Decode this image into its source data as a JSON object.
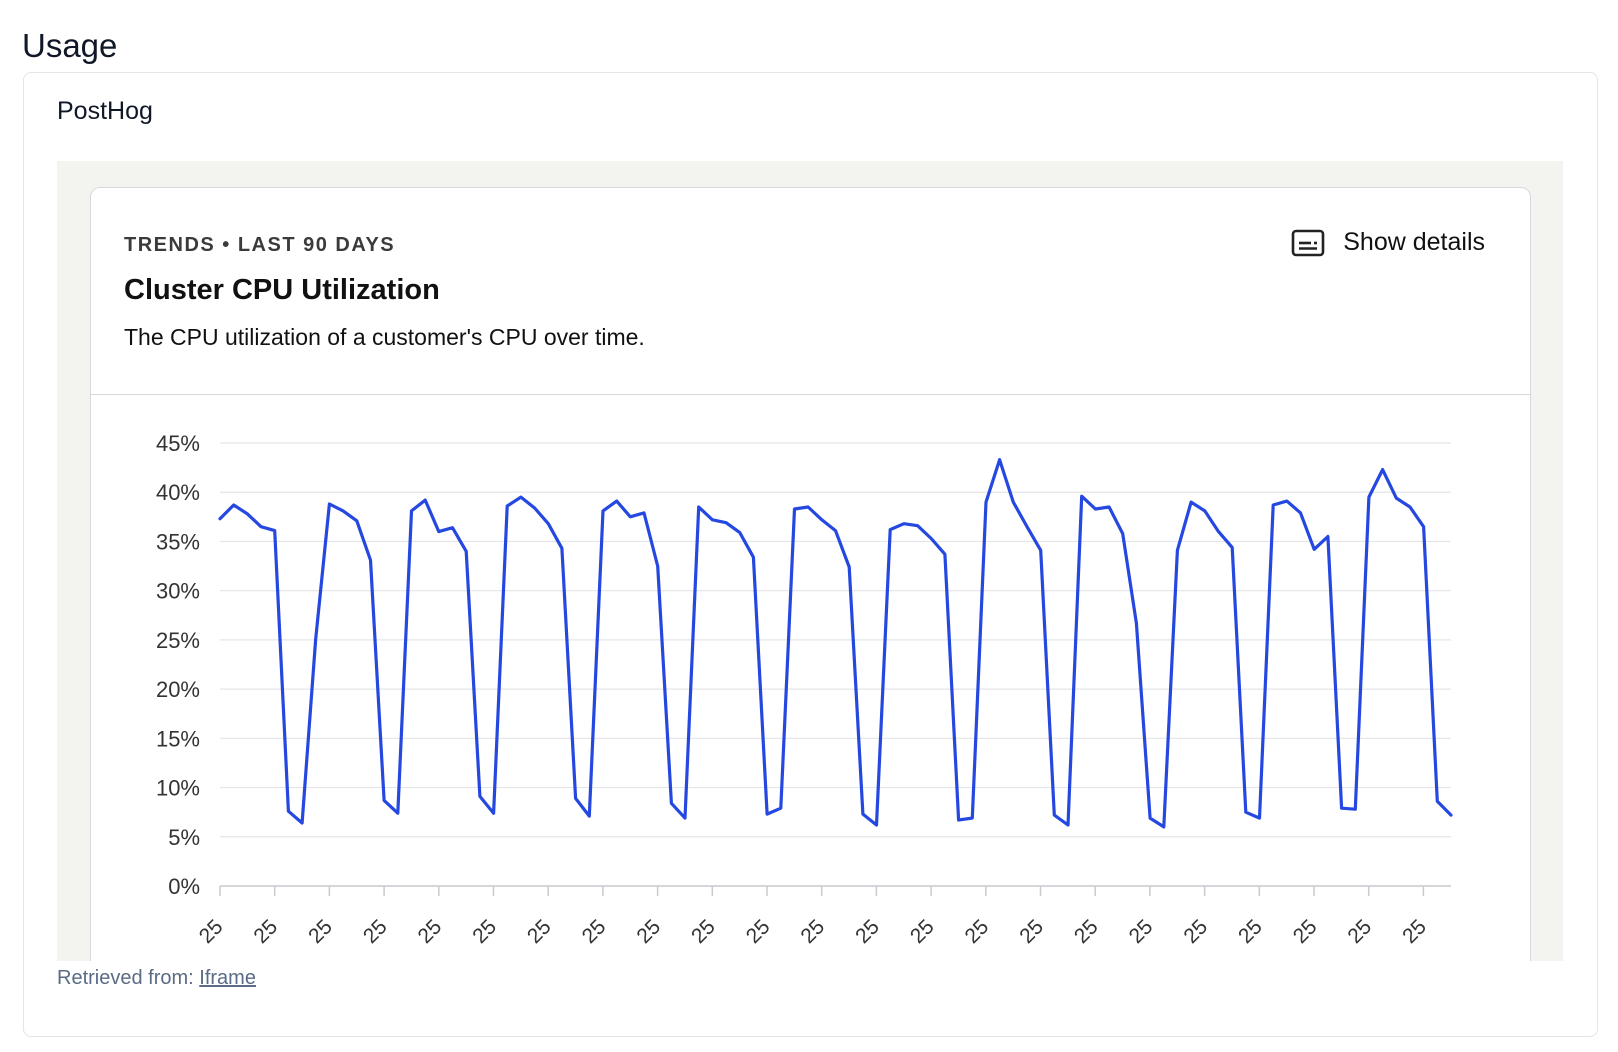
{
  "page": {
    "heading": "Usage"
  },
  "card": {
    "title": "PostHog",
    "footer": {
      "prefix": "Retrieved from: ",
      "link_label": "Iframe"
    }
  },
  "insight": {
    "meta": "TRENDS • LAST 90 DAYS",
    "title": "Cluster CPU Utilization",
    "description": "The CPU utilization of a customer's CPU over time.",
    "show_details_label": "Show details",
    "show_details_icon": "subtitles-icon"
  },
  "colors": {
    "series": "#2548e0",
    "grid": "#e4e5e8",
    "frame_bg": "#f3f3ef"
  },
  "chart_data": {
    "type": "line",
    "title": "Cluster CPU Utilization",
    "ylim": [
      0,
      45
    ],
    "y_ticks": [
      "0%",
      "5%",
      "10%",
      "15%",
      "20%",
      "25%",
      "30%",
      "35%",
      "40%",
      "45%"
    ],
    "y_tick_values": [
      0,
      5,
      10,
      15,
      20,
      25,
      30,
      35,
      40,
      45
    ],
    "x_tick_label": "25",
    "x_tick_count": 23,
    "grid": true,
    "series": [
      {
        "values": [
          37.3,
          38.7,
          37.8,
          36.5,
          36.1,
          7.6,
          6.4,
          25.1,
          38.8,
          38.1,
          37.1,
          33.1,
          8.7,
          7.4,
          38.1,
          39.2,
          36.0,
          36.4,
          34.0,
          9.1,
          7.4,
          38.6,
          39.5,
          38.4,
          36.8,
          34.3,
          8.9,
          7.1,
          38.1,
          39.1,
          37.5,
          37.9,
          32.5,
          8.4,
          6.9,
          38.5,
          37.2,
          36.9,
          35.9,
          33.4,
          7.3,
          7.9,
          38.3,
          38.5,
          37.2,
          36.1,
          32.4,
          7.3,
          6.2,
          36.2,
          36.8,
          36.6,
          35.3,
          33.7,
          6.7,
          6.9,
          39.0,
          43.3,
          39.0,
          36.5,
          34.1,
          7.2,
          6.2,
          39.6,
          38.3,
          38.5,
          35.8,
          26.7,
          6.9,
          6.0,
          34.1,
          39.0,
          38.1,
          36.0,
          34.4,
          7.5,
          6.9,
          38.7,
          39.1,
          37.9,
          34.2,
          35.5,
          7.9,
          7.8,
          39.5,
          42.3,
          39.4,
          38.5,
          36.5,
          8.6,
          7.2
        ]
      }
    ]
  }
}
